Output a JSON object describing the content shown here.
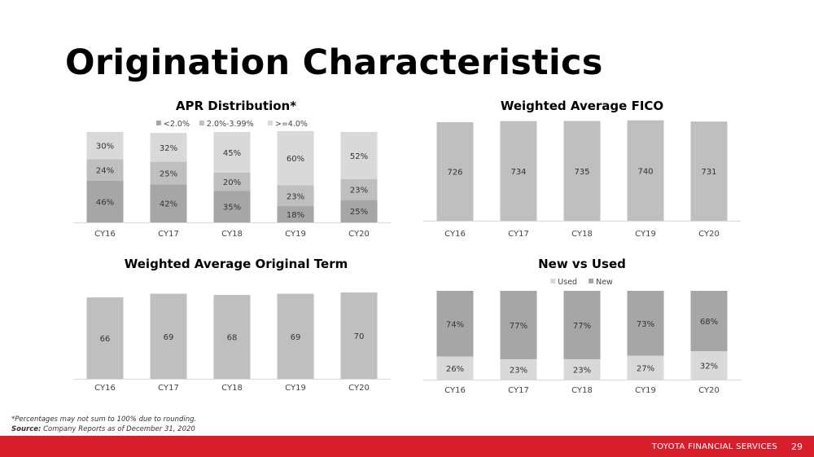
{
  "slide": {
    "title": "Origination Characteristics",
    "footnote": "*Percentages may not sum to 100% due to rounding.",
    "source_label": "Source:",
    "source_text": "Company Reports as of December 31, 2020",
    "brand": "TOYOTA FINANCIAL SERVICES",
    "page_number": "29"
  },
  "chart_data": [
    {
      "type": "bar",
      "stacked": true,
      "title": "APR Distribution*",
      "categories": [
        "CY16",
        "CY17",
        "CY18",
        "CY19",
        "CY20"
      ],
      "legend_position": "top",
      "series": [
        {
          "name": "<2.0%",
          "values": [
            46,
            42,
            35,
            18,
            25
          ],
          "labels": [
            "46%",
            "42%",
            "35%",
            "18%",
            "25%"
          ],
          "color": "#a6a6a6"
        },
        {
          "name": "2.0%-3.99%",
          "values": [
            24,
            25,
            20,
            23,
            23
          ],
          "labels": [
            "24%",
            "25%",
            "20%",
            "23%",
            "23%"
          ],
          "color": "#bfbfbf"
        },
        {
          "name": ">=4.0%",
          "values": [
            30,
            32,
            45,
            60,
            52
          ],
          "labels": [
            "30%",
            "32%",
            "45%",
            "60%",
            "52%"
          ],
          "color": "#d9d9d9"
        }
      ],
      "ylim": [
        0,
        100
      ]
    },
    {
      "type": "bar",
      "title": "Weighted Average FICO",
      "categories": [
        "CY16",
        "CY17",
        "CY18",
        "CY19",
        "CY20"
      ],
      "values": [
        726,
        734,
        735,
        740,
        731
      ],
      "labels": [
        "726",
        "734",
        "735",
        "740",
        "731"
      ],
      "color": "#bfbfbf",
      "ylim": [
        0,
        750
      ]
    },
    {
      "type": "bar",
      "title": "Weighted Average Original Term",
      "categories": [
        "CY16",
        "CY17",
        "CY18",
        "CY19",
        "CY20"
      ],
      "values": [
        66,
        69,
        68,
        69,
        70
      ],
      "labels": [
        "66",
        "69",
        "68",
        "69",
        "70"
      ],
      "color": "#bfbfbf",
      "ylim": [
        0,
        72
      ]
    },
    {
      "type": "bar",
      "stacked": true,
      "title": "New vs Used",
      "categories": [
        "CY16",
        "CY17",
        "CY18",
        "CY19",
        "CY20"
      ],
      "legend_position": "top",
      "series": [
        {
          "name": "Used",
          "values": [
            26,
            23,
            23,
            27,
            32
          ],
          "labels": [
            "26%",
            "23%",
            "23%",
            "27%",
            "32%"
          ],
          "color": "#d9d9d9"
        },
        {
          "name": "New",
          "values": [
            74,
            77,
            77,
            73,
            68
          ],
          "labels": [
            "74%",
            "77%",
            "77%",
            "73%",
            "68%"
          ],
          "color": "#a6a6a6"
        }
      ],
      "ylim": [
        0,
        100
      ]
    }
  ]
}
